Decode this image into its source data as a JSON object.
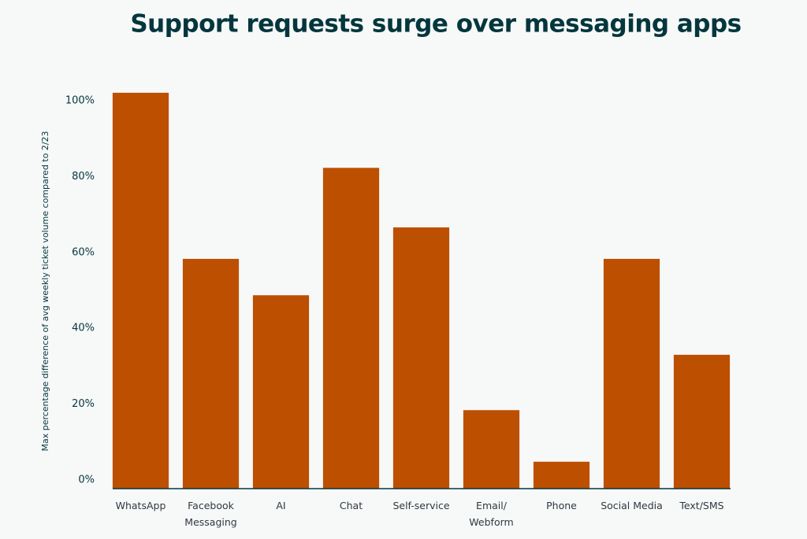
{
  "chart_data": {
    "type": "bar",
    "title": "Support requests surge over messaging apps",
    "y_label": "Max percentage difference of avg weekly ticket volume compared to 2/23",
    "categories": [
      "WhatsApp",
      "Facebook Messaging",
      "AI",
      "Chat",
      "Self-service",
      "Email/ Webform",
      "Phone",
      "Social Media",
      "Text/SMS"
    ],
    "values": [
      104.4,
      60.6,
      51,
      84.6,
      68.9,
      20.7,
      7.1,
      60.6,
      35.3
    ],
    "color": "#bd4f00",
    "ylim": [
      0,
      105
    ],
    "yticks": [
      {
        "value": 0,
        "label": "0%"
      },
      {
        "value": 20,
        "label": "20%"
      },
      {
        "value": 40,
        "label": "40%"
      },
      {
        "value": 60,
        "label": "60%"
      },
      {
        "value": 80,
        "label": "80%"
      },
      {
        "value": 100,
        "label": "100%"
      }
    ],
    "grid": false
  }
}
